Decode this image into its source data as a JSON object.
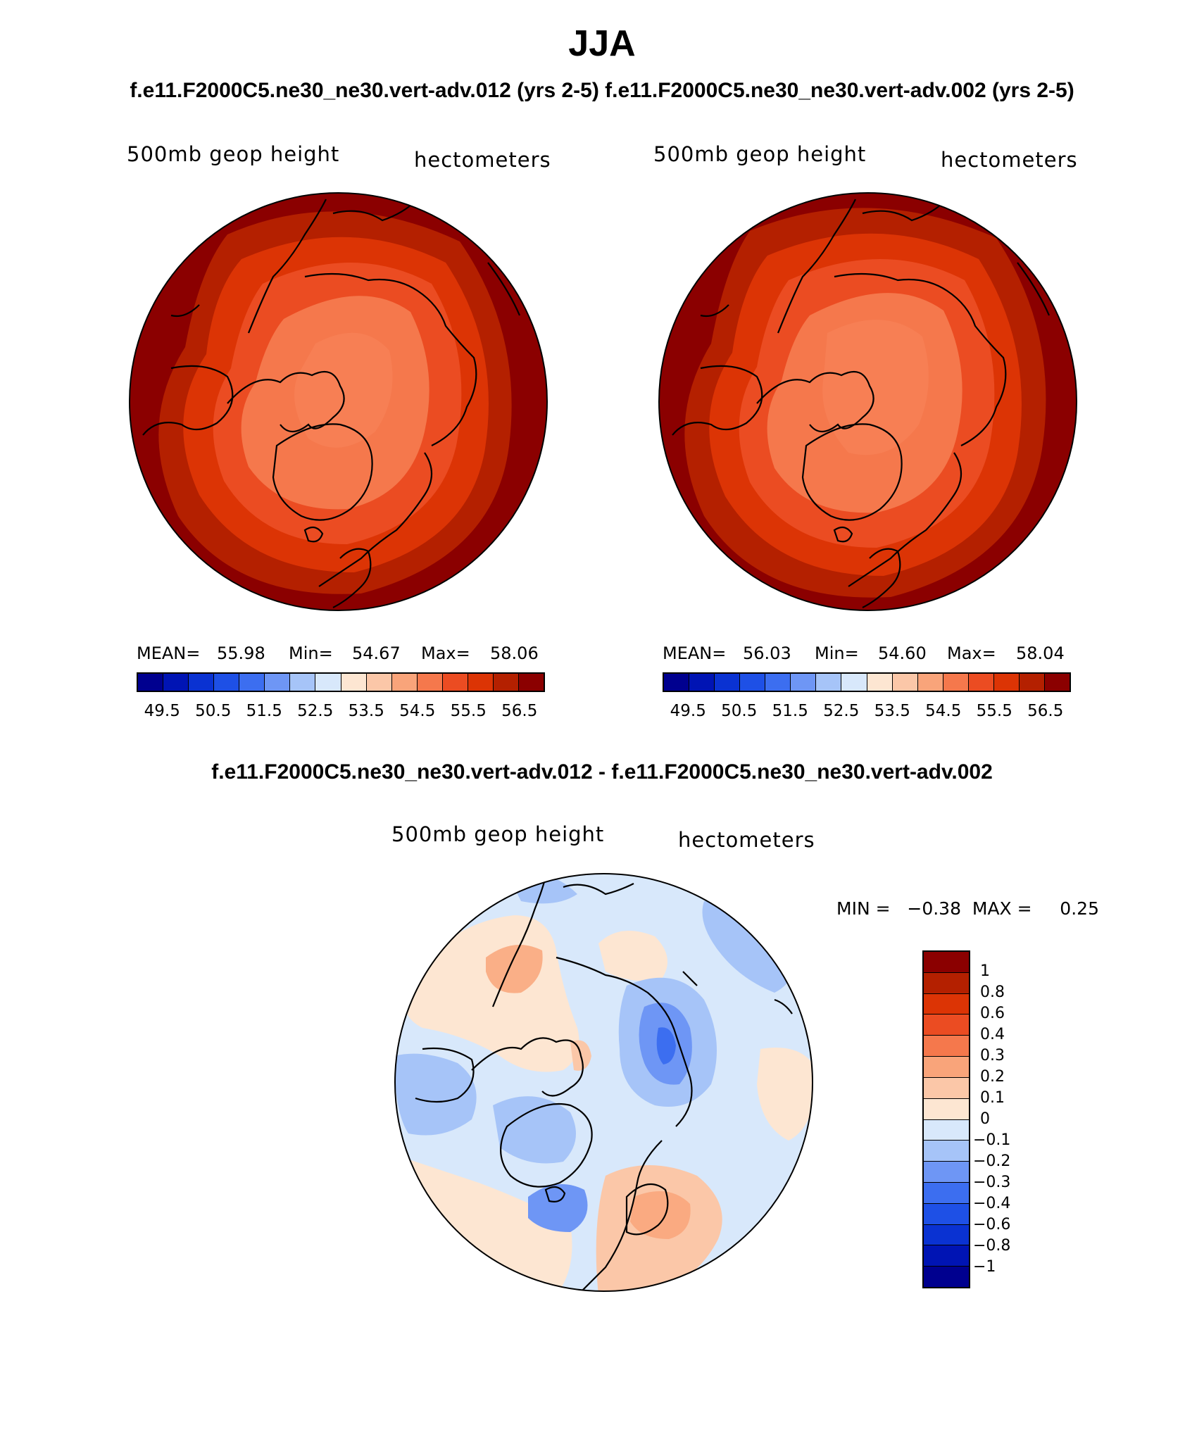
{
  "header": {
    "season": "JJA",
    "case_titles": "f.e11.F2000C5.ne30_ne30.vert-adv.012 (yrs 2-5)  f.e11.F2000C5.ne30_ne30.vert-adv.002 (yrs 2-5)",
    "diff_title": "f.e11.F2000C5.ne30_ne30.vert-adv.012 - f.e11.F2000C5.ne30_ne30.vert-adv.002"
  },
  "panels": [
    {
      "variable": "500mb geop height",
      "units": "hectometers",
      "mean_label": "MEAN=",
      "mean": "55.98",
      "min_label": "Min=",
      "min": "54.67",
      "max_label": "Max=",
      "max": "58.06"
    },
    {
      "variable": "500mb geop height",
      "units": "hectometers",
      "mean_label": "MEAN=",
      "mean": "56.03",
      "min_label": "Min=",
      "min": "54.60",
      "max_label": "Max=",
      "max": "58.04"
    }
  ],
  "diff_panel": {
    "variable": "500mb geop height",
    "units": "hectometers",
    "minmax": "MIN =   −0.38  MAX =     0.25"
  },
  "colorbar": {
    "ticks": [
      "49.5",
      "50.5",
      "51.5",
      "52.5",
      "53.5",
      "54.5",
      "55.5",
      "56.5"
    ],
    "colors": [
      "#00008f",
      "#0014b4",
      "#0a32d2",
      "#1e50e6",
      "#3c6ef0",
      "#6e96f5",
      "#a6c4f8",
      "#d8e8fb",
      "#fde6d2",
      "#fbc7a8",
      "#f9a47a",
      "#f5784c",
      "#eb4c22",
      "#dc3405",
      "#b42000",
      "#8b0000"
    ]
  },
  "diff_colorbar": {
    "ticks": [
      "1",
      "0.8",
      "0.6",
      "0.4",
      "0.3",
      "0.2",
      "0.1",
      "0",
      "−0.1",
      "−0.2",
      "−0.3",
      "−0.4",
      "−0.6",
      "−0.8",
      "−1"
    ],
    "colors": [
      "#8b0000",
      "#b42000",
      "#dc3405",
      "#eb4c22",
      "#f5784c",
      "#f9a47a",
      "#fbc7a8",
      "#fde6d2",
      "#d8e8fb",
      "#a6c4f8",
      "#6e96f5",
      "#3c6ef0",
      "#1e50e6",
      "#0a32d2",
      "#0014b4",
      "#00008f"
    ]
  }
}
